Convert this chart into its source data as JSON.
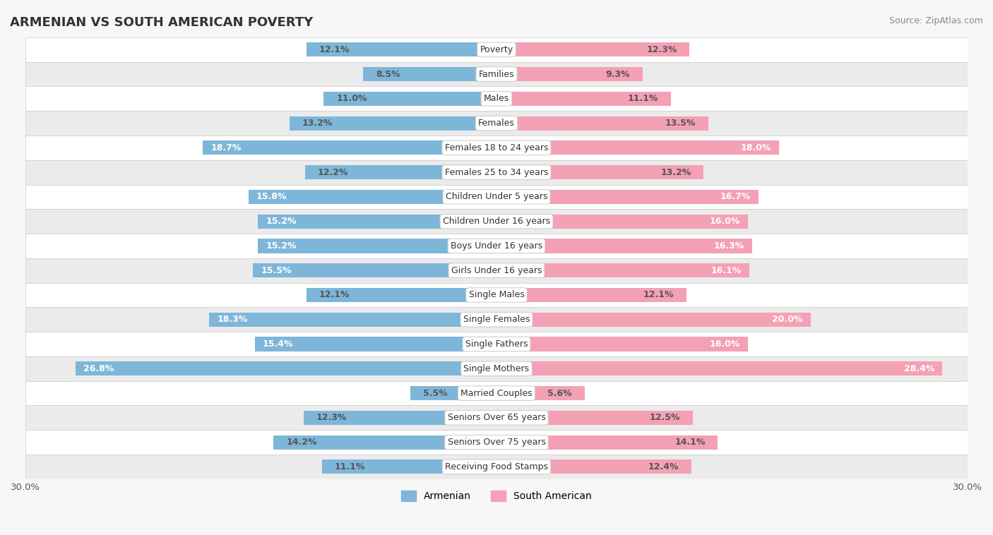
{
  "title": "ARMENIAN VS SOUTH AMERICAN POVERTY",
  "source": "Source: ZipAtlas.com",
  "categories": [
    "Poverty",
    "Families",
    "Males",
    "Females",
    "Females 18 to 24 years",
    "Females 25 to 34 years",
    "Children Under 5 years",
    "Children Under 16 years",
    "Boys Under 16 years",
    "Girls Under 16 years",
    "Single Males",
    "Single Females",
    "Single Fathers",
    "Single Mothers",
    "Married Couples",
    "Seniors Over 65 years",
    "Seniors Over 75 years",
    "Receiving Food Stamps"
  ],
  "armenian": [
    12.1,
    8.5,
    11.0,
    13.2,
    18.7,
    12.2,
    15.8,
    15.2,
    15.2,
    15.5,
    12.1,
    18.3,
    15.4,
    26.8,
    5.5,
    12.3,
    14.2,
    11.1
  ],
  "south_american": [
    12.3,
    9.3,
    11.1,
    13.5,
    18.0,
    13.2,
    16.7,
    16.0,
    16.3,
    16.1,
    12.1,
    20.0,
    16.0,
    28.4,
    5.6,
    12.5,
    14.1,
    12.4
  ],
  "armenian_color": "#7EB6D9",
  "south_american_color": "#F4A0B5",
  "highlight_threshold": 15.0,
  "bar_height": 0.58,
  "axis_max": 30.0,
  "background_color": "#f7f7f7",
  "row_color_even": "#ffffff",
  "row_color_odd": "#ebebeb",
  "label_fontsize": 9.0,
  "cat_fontsize": 9.0,
  "title_fontsize": 13,
  "legend_fontsize": 10,
  "axis_label_fontsize": 9.5
}
